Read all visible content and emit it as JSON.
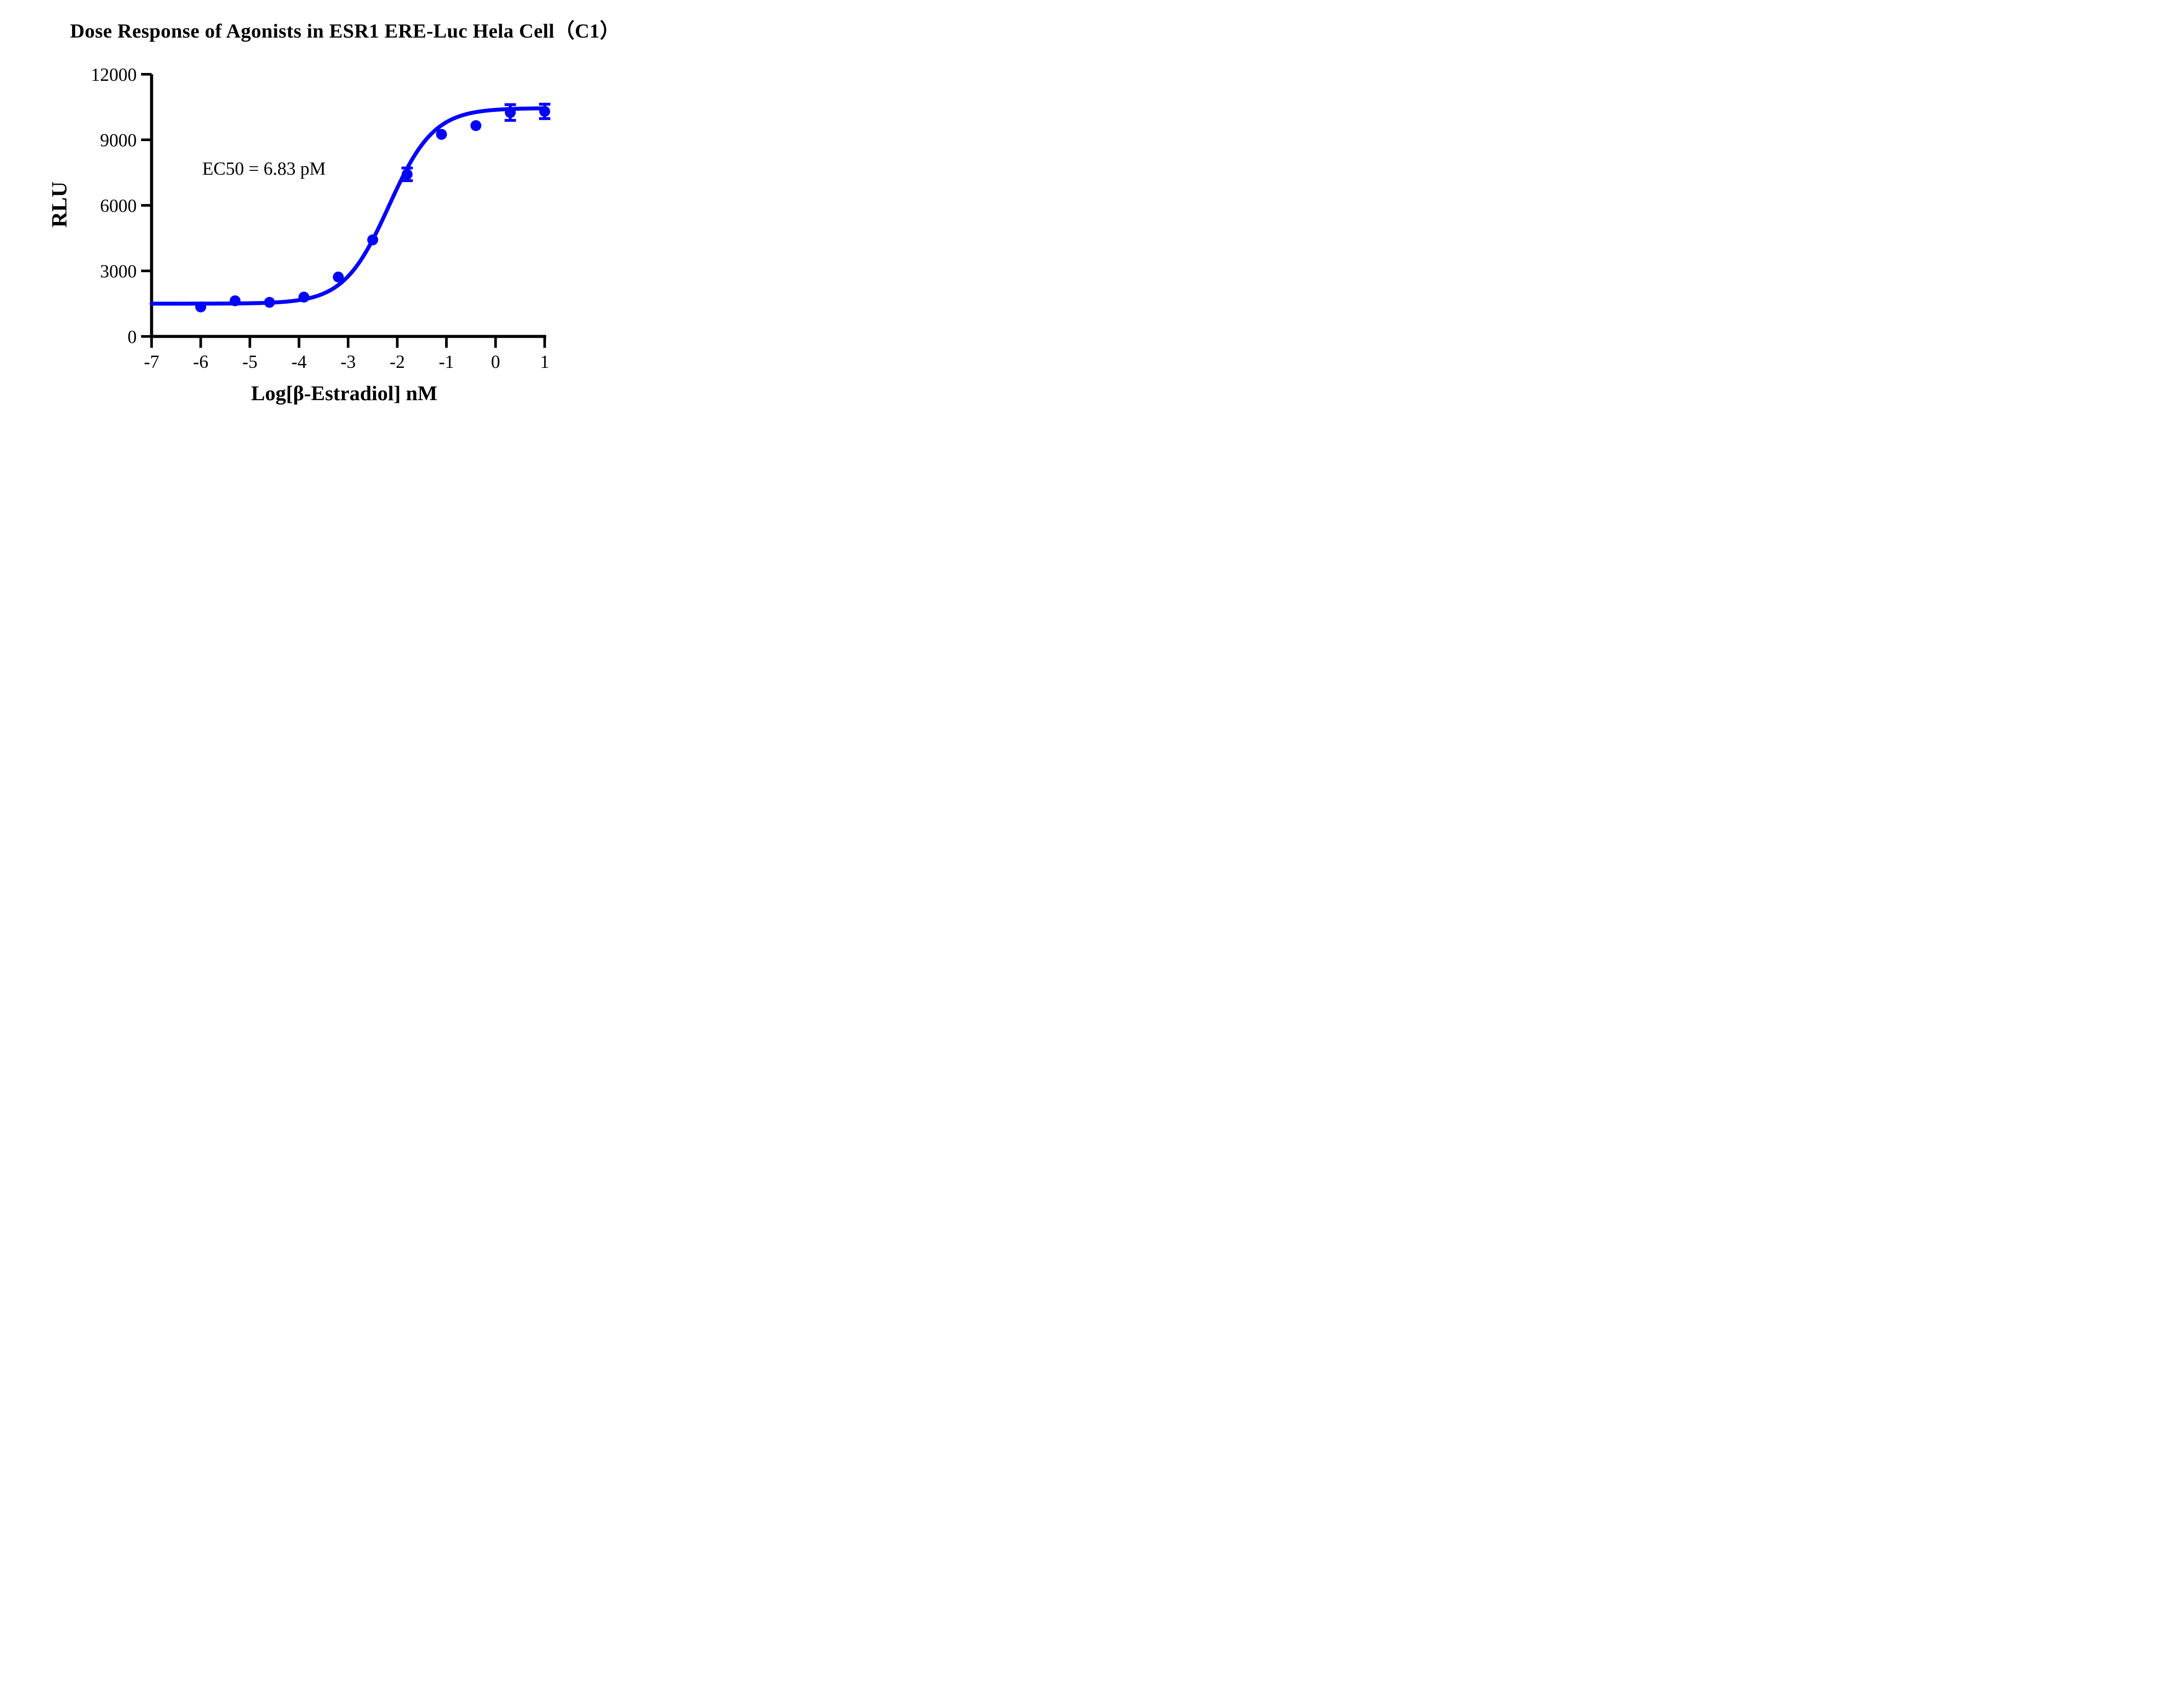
{
  "title": "Dose Response of Agonists in ESR1 ERE-Luc Hela Cell（C1）",
  "annotation": {
    "ec50_label": "EC50 = 6.83 pM"
  },
  "colors": {
    "curve": "#0202fd",
    "axis": "#000000",
    "background": "#ffffff"
  },
  "chart_data": {
    "type": "scatter",
    "title": "Dose Response of Agonists in ESR1 ERE-Luc Hela Cell（C1）",
    "xlabel": "Log[β-Estradiol] nM",
    "ylabel": "RLU",
    "series_name": "β-Estradiol",
    "x": [
      -6.0,
      -5.3,
      -4.6,
      -3.9,
      -3.2,
      -2.5,
      -1.8,
      -1.1,
      -0.4,
      0.3,
      1.0
    ],
    "y": [
      1350,
      1630,
      1560,
      1800,
      2720,
      4420,
      7420,
      9250,
      9650,
      10250,
      10300
    ],
    "y_error": [
      0,
      0,
      0,
      0,
      0,
      0,
      290,
      0,
      0,
      360,
      330
    ],
    "xlim": [
      -7,
      1
    ],
    "ylim": [
      0,
      12000
    ],
    "x_ticks": [
      -7,
      -6,
      -5,
      -4,
      -3,
      -2,
      -1,
      0,
      1
    ],
    "y_ticks": [
      0,
      3000,
      6000,
      9000,
      12000
    ],
    "fit": {
      "model": "4PL-logistic",
      "bottom": 1500,
      "top": 10450,
      "log_ec50": -2.17,
      "hill": 0.95,
      "ec50_text": "EC50 = 6.83 pM"
    },
    "grid": false,
    "legend_position": "none"
  }
}
